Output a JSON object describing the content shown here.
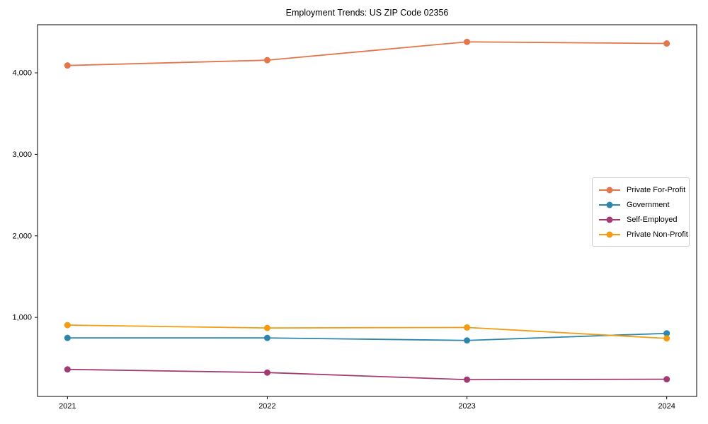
{
  "chart_data": {
    "type": "line",
    "title": "Employment Trends: US ZIP Code 02356",
    "xlabel": "",
    "ylabel": "",
    "categories": [
      "2021",
      "2022",
      "2023",
      "2024"
    ],
    "series": [
      {
        "name": "Private For-Profit",
        "color": "#E3764B",
        "values": [
          4090,
          4155,
          4380,
          4360
        ]
      },
      {
        "name": "Government",
        "color": "#2E86AB",
        "values": [
          748,
          748,
          717,
          804
        ]
      },
      {
        "name": "Self-Employed",
        "color": "#A23B72",
        "values": [
          362,
          323,
          236,
          241
        ]
      },
      {
        "name": "Private Non-Profit",
        "color": "#F39C12",
        "values": [
          905,
          870,
          876,
          742
        ]
      }
    ],
    "yticks": [
      {
        "value": 1000,
        "label": "1,000"
      },
      {
        "value": 2000,
        "label": "2,000"
      },
      {
        "value": 3000,
        "label": "3,000"
      },
      {
        "value": 4000,
        "label": "4,000"
      }
    ],
    "xlim": [
      2020.85,
      2024.15
    ],
    "ylim": [
      30,
      4590
    ],
    "grid": false,
    "legend_position": "center right",
    "colors": {
      "axes": "#000000",
      "legend_border": "#cccccc",
      "background": "#ffffff"
    }
  }
}
